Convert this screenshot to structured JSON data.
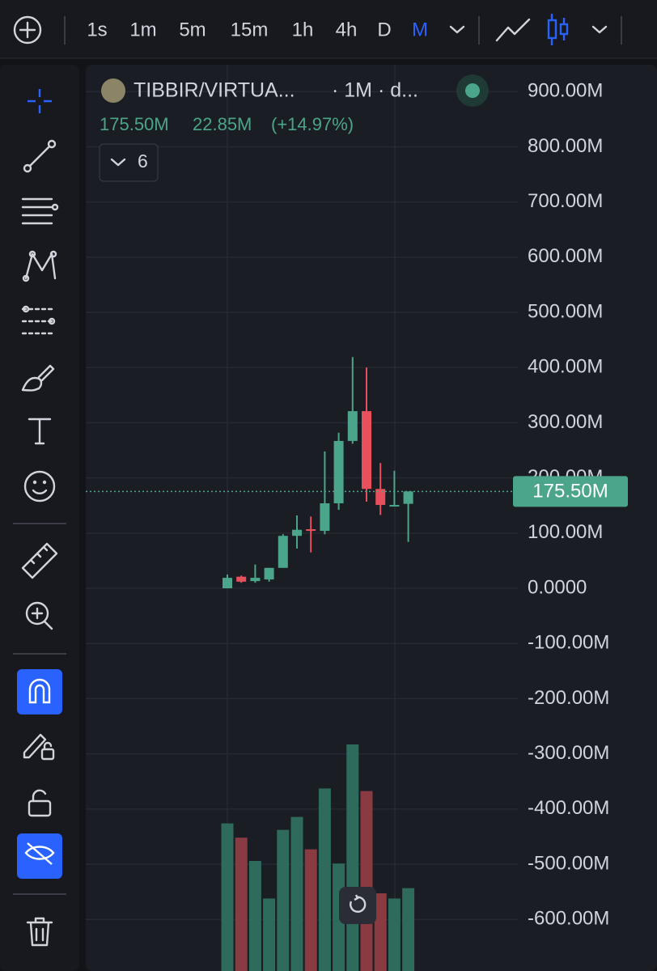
{
  "toolbar": {
    "intervals": [
      "1s",
      "1m",
      "5m",
      "15m",
      "1h",
      "4h",
      "D",
      "M"
    ]
  },
  "legend": {
    "symbol": "TIBBIR/VIRTUA...",
    "meta": "· 1M · d...",
    "close": "175.50M",
    "change": "22.85M",
    "change_pct": "(+14.97%)",
    "indicators_count": "6"
  },
  "chart_data": {
    "type": "candlestick",
    "ylim": [
      -693.5,
      948.7
    ],
    "yticks": [
      {
        "value": 900,
        "label": "900.00M"
      },
      {
        "value": 800,
        "label": "800.00M"
      },
      {
        "value": 700,
        "label": "700.00M"
      },
      {
        "value": 600,
        "label": "600.00M"
      },
      {
        "value": 500,
        "label": "500.00M"
      },
      {
        "value": 400,
        "label": "400.00M"
      },
      {
        "value": 300,
        "label": "300.00M"
      },
      {
        "value": 200,
        "label": "200.00M"
      },
      {
        "value": 100,
        "label": "100.00M"
      },
      {
        "value": 0,
        "label": "0.0000"
      },
      {
        "value": -100,
        "label": "-100.00M"
      },
      {
        "value": -200,
        "label": "-200.00M"
      },
      {
        "value": -300,
        "label": "-300.00M"
      },
      {
        "value": -400,
        "label": "-400.00M"
      },
      {
        "value": -500,
        "label": "-500.00M"
      },
      {
        "value": -600,
        "label": "-600.00M"
      }
    ],
    "grid": true,
    "up_color": "#4aa58a",
    "down_color": "#e8505b",
    "open": [
      0,
      21,
      13,
      16,
      37,
      95,
      107,
      104,
      154,
      267,
      321,
      180,
      151,
      153
    ],
    "high": [
      25,
      23,
      43,
      37,
      98,
      132,
      130,
      248,
      282,
      419,
      400,
      227,
      213,
      175.5
    ],
    "low": [
      0,
      10,
      10,
      12,
      37,
      72,
      65,
      98,
      142,
      262,
      157,
      133,
      151,
      84
    ],
    "close": [
      19,
      12,
      19,
      37,
      95,
      106,
      104,
      154,
      267,
      321,
      180,
      151,
      151,
      175.5
    ],
    "volume": [
      114,
      103,
      85,
      56,
      109,
      119,
      94,
      141,
      83,
      175,
      139,
      60,
      56,
      64
    ],
    "volume_lim": [
      0,
      700
    ],
    "last_price": {
      "value": 175.5,
      "label": "175.50M"
    }
  }
}
